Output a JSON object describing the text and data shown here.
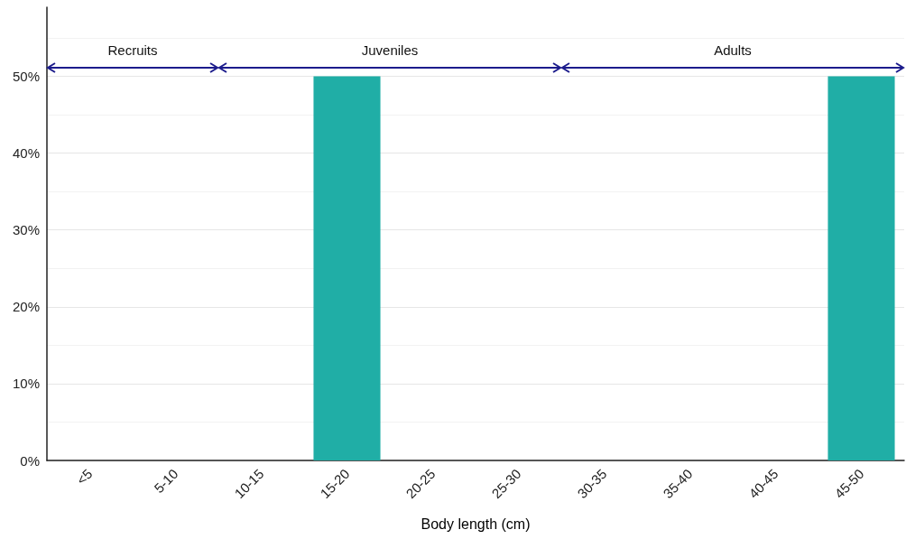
{
  "chart_data": {
    "type": "bar",
    "xlabel": "Body length (cm)",
    "categories": [
      "<5",
      "5-10",
      "10-15",
      "15-20",
      "20-25",
      "25-30",
      "30-35",
      "35-40",
      "40-45",
      "45-50"
    ],
    "values": [
      0,
      0,
      0,
      50,
      0,
      0,
      0,
      0,
      0,
      50
    ],
    "color": "#20aea6",
    "ylim": [
      0,
      59
    ],
    "yticks": [
      {
        "value": 0,
        "label": "0%"
      },
      {
        "value": 10,
        "label": "10%"
      },
      {
        "value": 20,
        "label": "20%"
      },
      {
        "value": 30,
        "label": "30%"
      },
      {
        "value": 40,
        "label": "40%"
      },
      {
        "value": 50,
        "label": "50%"
      }
    ],
    "grid": "y",
    "annotations": [
      "Recruits",
      "Juveniles",
      "Adults"
    ]
  }
}
